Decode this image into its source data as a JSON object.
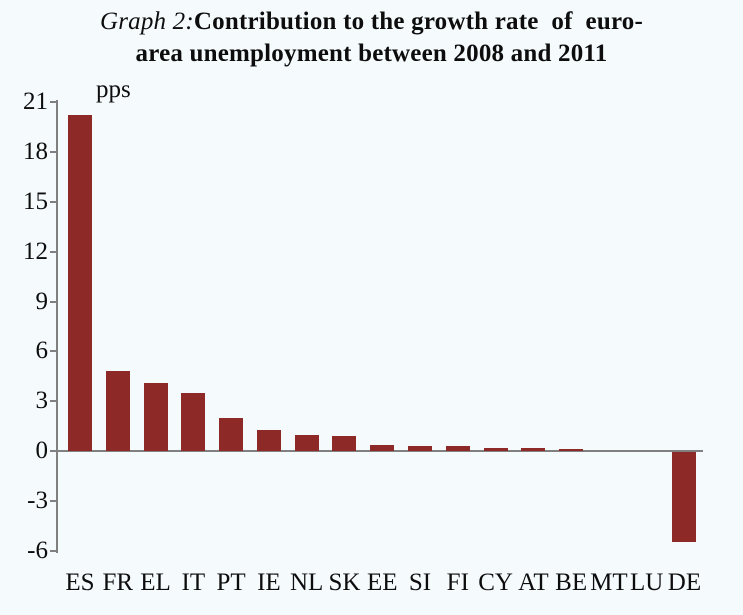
{
  "title": {
    "prefix": "Graph 2:",
    "line1_rest": "Contribution to the growth rate  of  euro-",
    "line2": "area unemployment between 2008 and 2011"
  },
  "unit_label": "pps",
  "colors": {
    "bar": "#8d2a27",
    "axis": "#808080",
    "background": "#f5fafd",
    "text": "#0d0d0d"
  },
  "chart_data": {
    "type": "bar",
    "title": "Graph 2: Contribution to the growth rate of euro-area unemployment between 2008 and 2011",
    "unit": "pps",
    "categories": [
      "ES",
      "FR",
      "EL",
      "IT",
      "PT",
      "IE",
      "NL",
      "SK",
      "EE",
      "SI",
      "FI",
      "CY",
      "AT",
      "BE",
      "MT",
      "LU",
      "DE"
    ],
    "values": [
      20.2,
      4.8,
      4.1,
      3.5,
      2.0,
      1.3,
      1.0,
      0.9,
      0.4,
      0.3,
      0.3,
      0.2,
      0.2,
      0.15,
      0.05,
      0.02,
      -5.4
    ],
    "xlabel": "",
    "ylabel": "pps",
    "ylim": [
      -6,
      21
    ],
    "yticks": [
      21,
      18,
      15,
      12,
      9,
      6,
      3,
      0,
      -3,
      -6
    ],
    "grid": false,
    "legend": false
  }
}
